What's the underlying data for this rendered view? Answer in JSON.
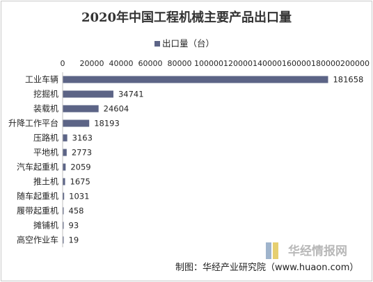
{
  "chart_data": {
    "type": "bar",
    "orientation": "horizontal",
    "title": "2020年中国工程机械主要产品出口量",
    "legend": {
      "position": "top",
      "entries": [
        "出口量（台）"
      ]
    },
    "series": [
      {
        "name": "出口量（台）",
        "color": "#5c6486",
        "values": [
          181658,
          34741,
          24604,
          18193,
          3163,
          2773,
          2059,
          1675,
          1031,
          458,
          93,
          19
        ]
      }
    ],
    "categories": [
      "工业车辆",
      "挖掘机",
      "装载机",
      "升降工作平台",
      "压路机",
      "平地机",
      "汽车起重机",
      "推土机",
      "随车起重机",
      "履带起重机",
      "摊铺机",
      "高空作业车"
    ],
    "xlim": [
      0,
      200000
    ],
    "x_ticks": [
      0,
      20000,
      40000,
      60000,
      80000,
      100000,
      120000,
      140000,
      160000,
      180000,
      200000
    ],
    "x_axis_position": "top",
    "grid": false
  },
  "credit": "制图：华经产业研究院（www.huaon.com）",
  "watermark": {
    "text": "华经情报网",
    "subtext": "华经产业研究院"
  }
}
